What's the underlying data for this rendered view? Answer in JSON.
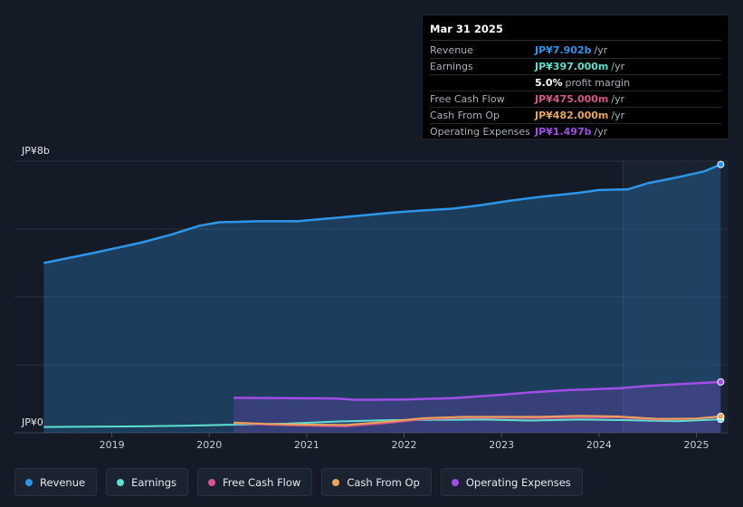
{
  "chart_data": {
    "type": "area",
    "y_axis": {
      "top_label": "JP¥8b",
      "bottom_label": "JP¥0",
      "ylim": [
        0,
        8
      ]
    },
    "x_ticks": [
      "2019",
      "2020",
      "2021",
      "2022",
      "2023",
      "2024",
      "2025"
    ],
    "xlim": [
      2018.0,
      2025.33
    ],
    "units": "billions JPY",
    "series": [
      {
        "name": "Revenue",
        "color": "#2e96ea",
        "points": [
          [
            2018.3,
            5.0
          ],
          [
            2018.8,
            5.29
          ],
          [
            2019.3,
            5.6
          ],
          [
            2019.6,
            5.83
          ],
          [
            2019.9,
            6.1
          ],
          [
            2020.1,
            6.2
          ],
          [
            2020.5,
            6.23
          ],
          [
            2020.9,
            6.23
          ],
          [
            2021.3,
            6.33
          ],
          [
            2021.6,
            6.41
          ],
          [
            2021.9,
            6.49
          ],
          [
            2022.2,
            6.55
          ],
          [
            2022.5,
            6.6
          ],
          [
            2022.8,
            6.71
          ],
          [
            2023.1,
            6.84
          ],
          [
            2023.4,
            6.95
          ],
          [
            2023.8,
            7.07
          ],
          [
            2024.0,
            7.15
          ],
          [
            2024.3,
            7.17
          ],
          [
            2024.5,
            7.35
          ],
          [
            2024.8,
            7.52
          ],
          [
            2025.08,
            7.7
          ],
          [
            2025.25,
            7.902
          ]
        ]
      },
      {
        "name": "Earnings",
        "color": "#5de0d0",
        "points": [
          [
            2018.3,
            0.17
          ],
          [
            2018.8,
            0.18
          ],
          [
            2019.3,
            0.19
          ],
          [
            2019.8,
            0.21
          ],
          [
            2020.3,
            0.24
          ],
          [
            2020.8,
            0.27
          ],
          [
            2021.3,
            0.33
          ],
          [
            2021.8,
            0.37
          ],
          [
            2022.3,
            0.38
          ],
          [
            2022.8,
            0.39
          ],
          [
            2023.3,
            0.36
          ],
          [
            2023.8,
            0.39
          ],
          [
            2024.3,
            0.37
          ],
          [
            2024.8,
            0.34
          ],
          [
            2025.25,
            0.397
          ]
        ]
      },
      {
        "name": "Free Cash Flow",
        "color": "#d6558a",
        "points": [
          [
            2020.25,
            0.28
          ],
          [
            2020.6,
            0.24
          ],
          [
            2021.0,
            0.21
          ],
          [
            2021.4,
            0.19
          ],
          [
            2021.8,
            0.28
          ],
          [
            2022.2,
            0.4
          ],
          [
            2022.6,
            0.44
          ],
          [
            2023.0,
            0.44
          ],
          [
            2023.4,
            0.43
          ],
          [
            2023.8,
            0.45
          ],
          [
            2024.2,
            0.45
          ],
          [
            2024.6,
            0.39
          ],
          [
            2025.0,
            0.41
          ],
          [
            2025.25,
            0.475
          ]
        ]
      },
      {
        "name": "Cash From Op",
        "color": "#e8a55b",
        "points": [
          [
            2020.25,
            0.3
          ],
          [
            2020.6,
            0.26
          ],
          [
            2021.0,
            0.24
          ],
          [
            2021.4,
            0.23
          ],
          [
            2021.8,
            0.32
          ],
          [
            2022.2,
            0.43
          ],
          [
            2022.6,
            0.47
          ],
          [
            2023.0,
            0.47
          ],
          [
            2023.4,
            0.47
          ],
          [
            2023.8,
            0.5
          ],
          [
            2024.2,
            0.48
          ],
          [
            2024.6,
            0.41
          ],
          [
            2025.0,
            0.42
          ],
          [
            2025.25,
            0.482
          ]
        ]
      },
      {
        "name": "Operating Expenses",
        "color": "#a04ee6",
        "points": [
          [
            2020.25,
            1.03
          ],
          [
            2020.8,
            1.02
          ],
          [
            2021.3,
            1.01
          ],
          [
            2021.5,
            0.97
          ],
          [
            2022.0,
            0.98
          ],
          [
            2022.5,
            1.02
          ],
          [
            2023.0,
            1.12
          ],
          [
            2023.3,
            1.19
          ],
          [
            2023.7,
            1.26
          ],
          [
            2024.2,
            1.31
          ],
          [
            2024.5,
            1.38
          ],
          [
            2025.0,
            1.46
          ],
          [
            2025.25,
            1.497
          ]
        ]
      }
    ],
    "highlight_start": 2024.25
  },
  "tooltip": {
    "date": "Mar 31 2025",
    "rows": [
      {
        "label": "Revenue",
        "value": "JP¥7.902b",
        "unit": "/yr",
        "color": "#2e96ea"
      },
      {
        "label": "Earnings",
        "value": "JP¥397.000m",
        "unit": "/yr",
        "color": "#5de0d0"
      },
      {
        "label": "",
        "value": "5.0%",
        "unit": "profit margin",
        "color": "#ffffff"
      },
      {
        "label": "Free Cash Flow",
        "value": "JP¥475.000m",
        "unit": "/yr",
        "color": "#d6558a"
      },
      {
        "label": "Cash From Op",
        "value": "JP¥482.000m",
        "unit": "/yr",
        "color": "#e8a55b"
      },
      {
        "label": "Operating Expenses",
        "value": "JP¥1.497b",
        "unit": "/yr",
        "color": "#a04ee6"
      }
    ]
  },
  "legend": [
    {
      "label": "Revenue",
      "color": "#2e96ea"
    },
    {
      "label": "Earnings",
      "color": "#5de0d0"
    },
    {
      "label": "Free Cash Flow",
      "color": "#d6558a"
    },
    {
      "label": "Cash From Op",
      "color": "#e8a55b"
    },
    {
      "label": "Operating Expenses",
      "color": "#a04ee6"
    }
  ]
}
